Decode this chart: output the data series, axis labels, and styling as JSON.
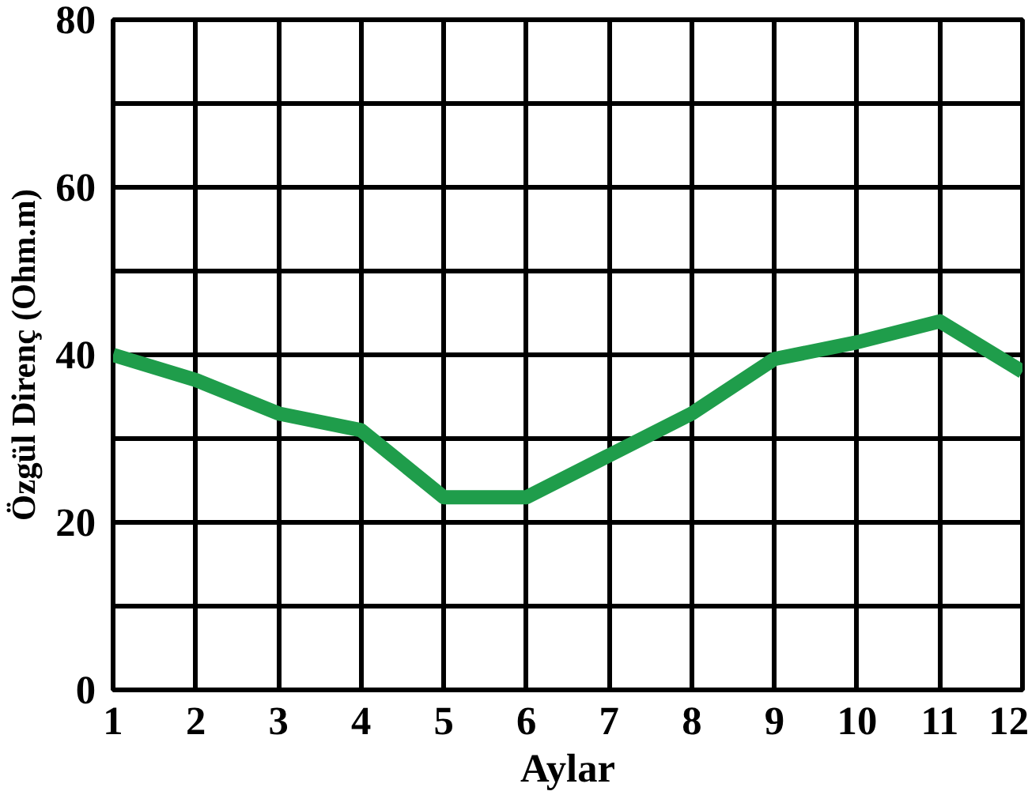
{
  "chart_data": {
    "type": "line",
    "xlabel": "Aylar",
    "ylabel": "Özgül Direnç (Ohm.m)",
    "x": [
      1,
      2,
      3,
      4,
      5,
      6,
      7,
      8,
      9,
      10,
      11,
      12
    ],
    "series": [
      {
        "color": "#1f9d4b",
        "values": [
          40,
          37,
          33,
          31,
          23,
          23,
          28,
          33,
          39.5,
          41.5,
          44,
          38
        ]
      }
    ],
    "xlim": [
      1,
      12
    ],
    "ylim": [
      0,
      80
    ],
    "xticks": [
      1,
      2,
      3,
      4,
      5,
      6,
      7,
      8,
      9,
      10,
      11,
      12
    ],
    "yticks": [
      0,
      {
        "value": 10,
        "label": null
      },
      20,
      {
        "value": 30,
        "label": null
      },
      40,
      {
        "value": 50,
        "label": null
      },
      60,
      {
        "value": 70,
        "label": null
      },
      80
    ],
    "grid": true,
    "marker": "none",
    "line_style": "solid"
  }
}
